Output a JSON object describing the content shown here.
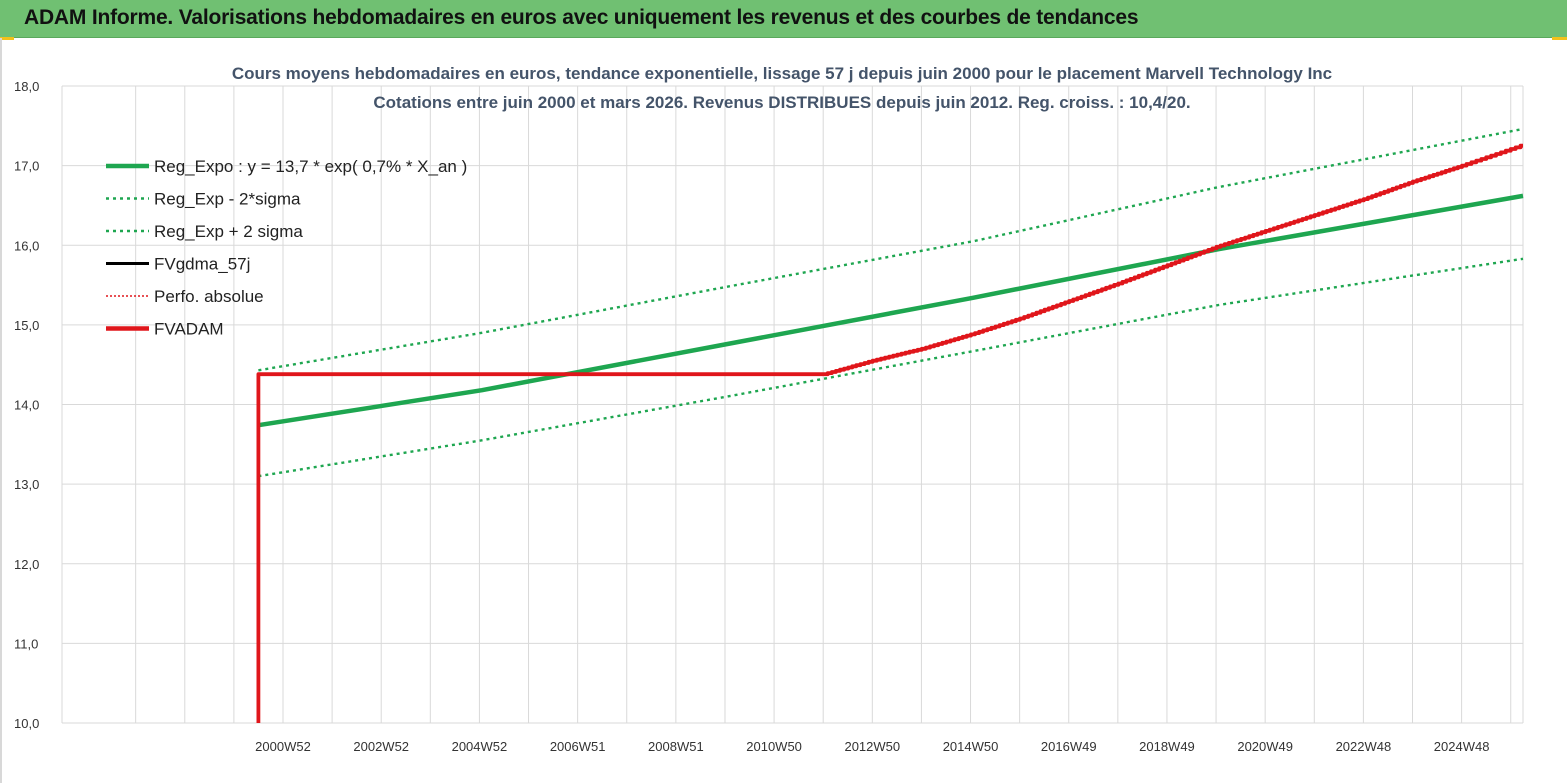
{
  "header": {
    "title": "ADAM Informe. Valorisations hebdomadaires en euros avec uniquement les revenus et des courbes de tendances"
  },
  "colors": {
    "banner": "#70c072",
    "green": "#1ea650",
    "red": "#e0161b",
    "black": "#000000",
    "grid": "#d9d9d9",
    "title": "#44546a"
  },
  "chart_data": {
    "type": "line",
    "title": [
      "Cours moyens hebdomadaires en euros, tendance exponentielle, lissage 57 j depuis juin 2000 pour le placement Marvell Technology Inc",
      "Cotations entre juin 2000 et mars 2026. Revenus DISTRIBUES  depuis juin 2012. Reg. croiss. : 10,4/20."
    ],
    "xlabel": "",
    "ylabel": "",
    "ylim": [
      10,
      18
    ],
    "xlim": [
      1996.45,
      2026.2
    ],
    "x_tick_labels": [
      "2000W52",
      "2002W52",
      "2004W52",
      "2006W51",
      "2008W51",
      "2010W50",
      "2012W50",
      "2014W50",
      "2016W49",
      "2018W49",
      "2020W49",
      "2022W48",
      "2024W48"
    ],
    "x_tick_years": [
      2000.95,
      2002.95,
      2004.95,
      2006.95,
      2008.95,
      2010.95,
      2012.95,
      2014.95,
      2016.95,
      2018.95,
      2020.95,
      2022.95,
      2024.95
    ],
    "y_tick_labels": [
      "10,0",
      "11,0",
      "12,0",
      "13,0",
      "14,0",
      "15,0",
      "16,0",
      "17,0",
      "18,0"
    ],
    "y_ticks": [
      10,
      11,
      12,
      13,
      14,
      15,
      16,
      17,
      18
    ],
    "grid": true,
    "legend_position": "top-left",
    "legend": [
      {
        "label": "Reg_Expo : y = 13,7 * exp( 0,7% *  X_an )",
        "color": "#1ea650",
        "style": "solid-thick"
      },
      {
        "label": "Reg_Exp - 2*sigma",
        "color": "#1ea650",
        "style": "dotted"
      },
      {
        "label": "Reg_Exp + 2 sigma",
        "color": "#1ea650",
        "style": "dotted"
      },
      {
        "label": "FVgdma_57j",
        "color": "#000000",
        "style": "solid"
      },
      {
        "label": "Perfo. absolue",
        "color": "#e0161b",
        "style": "dotted"
      },
      {
        "label": "FVADAM",
        "color": "#e0161b",
        "style": "solid-thick"
      }
    ],
    "series": [
      {
        "name": "Reg_Expo : y = 13,7 * exp( 0,7% *  X_an )",
        "x": [
          2000.45,
          2005,
          2010,
          2015,
          2020,
          2026.2
        ],
        "y": [
          13.74,
          14.18,
          14.76,
          15.34,
          15.95,
          16.62
        ]
      },
      {
        "name": "Reg_Exp - 2*sigma",
        "x": [
          2000.45,
          2005,
          2010,
          2015,
          2020,
          2026.2
        ],
        "y": [
          13.1,
          13.55,
          14.1,
          14.67,
          15.25,
          15.83
        ]
      },
      {
        "name": "Reg_Exp + 2 sigma",
        "x": [
          2000.45,
          2005,
          2010,
          2015,
          2020,
          2026.2
        ],
        "y": [
          14.43,
          14.9,
          15.48,
          16.05,
          16.73,
          17.46
        ]
      },
      {
        "name": "FVADAM",
        "x": [
          2000.45,
          2000.45,
          2012.0,
          2013.0,
          2014.0,
          2015.0,
          2016.0,
          2017.0,
          2018.0,
          2019.0,
          2020.0,
          2021.0,
          2022.0,
          2023.0,
          2024.0,
          2025.0,
          2026.2
        ],
        "y": [
          10.0,
          14.38,
          14.38,
          14.55,
          14.7,
          14.88,
          15.08,
          15.3,
          15.52,
          15.75,
          15.98,
          16.18,
          16.38,
          16.58,
          16.8,
          17.0,
          17.25
        ]
      }
    ]
  }
}
